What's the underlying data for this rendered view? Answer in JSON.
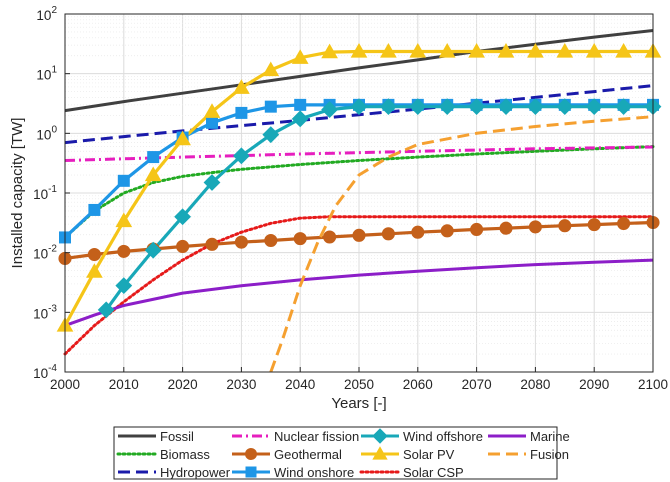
{
  "chart_data": {
    "type": "line",
    "xlabel": "Years [-]",
    "ylabel": "Installed capacity [TW]",
    "xlim": [
      2000,
      2100
    ],
    "ylim": [
      0.0001,
      100
    ],
    "yscale": "log",
    "grid": true,
    "legend_position": "bottom-outside",
    "x_ticks": [
      2000,
      2010,
      2020,
      2030,
      2040,
      2050,
      2060,
      2070,
      2080,
      2090,
      2100
    ],
    "x_tick_labels": [
      "2000",
      "2010",
      "2020",
      "2030",
      "2040",
      "2050",
      "2060",
      "2070",
      "2080",
      "2090",
      "2100"
    ],
    "y_ticks": [
      {
        "value": 0.0001,
        "base": "10",
        "exp": "-4"
      },
      {
        "value": 0.001,
        "base": "10",
        "exp": "-3"
      },
      {
        "value": 0.01,
        "base": "10",
        "exp": "-2"
      },
      {
        "value": 0.1,
        "base": "10",
        "exp": "-1"
      },
      {
        "value": 1,
        "base": "10",
        "exp": "0"
      },
      {
        "value": 10,
        "base": "10",
        "exp": "1"
      },
      {
        "value": 100,
        "base": "10",
        "exp": "2"
      }
    ],
    "series": [
      {
        "name": "Fossil",
        "color": "#404040",
        "dash": "solid",
        "marker": "none",
        "x": [
          2000,
          2010,
          2020,
          2030,
          2040,
          2050,
          2060,
          2070,
          2080,
          2090,
          2100
        ],
        "y": [
          2.4,
          3.4,
          4.7,
          6.5,
          9.0,
          12.5,
          17,
          23.5,
          31,
          41,
          53
        ]
      },
      {
        "name": "Biomass",
        "color": "#22aa22",
        "dash": "dotted",
        "marker": "none",
        "x": [
          2000,
          2005,
          2010,
          2015,
          2020,
          2025,
          2030,
          2040,
          2050,
          2060,
          2070,
          2080,
          2090,
          2100
        ],
        "y": [
          0.018,
          0.05,
          0.1,
          0.15,
          0.19,
          0.22,
          0.25,
          0.3,
          0.35,
          0.4,
          0.45,
          0.5,
          0.55,
          0.6
        ]
      },
      {
        "name": "Hydropower",
        "color": "#1a1aaa",
        "dash": "dashed",
        "marker": "none",
        "x": [
          2000,
          2010,
          2020,
          2030,
          2040,
          2050,
          2060,
          2070,
          2080,
          2090,
          2100
        ],
        "y": [
          0.7,
          0.88,
          1.1,
          1.35,
          1.65,
          2.05,
          2.55,
          3.2,
          4.0,
          5.0,
          6.3
        ]
      },
      {
        "name": "Nuclear fission",
        "color": "#e61ebe",
        "dash": "dashdot",
        "marker": "none",
        "x": [
          2000,
          2020,
          2040,
          2060,
          2080,
          2100
        ],
        "y": [
          0.35,
          0.4,
          0.45,
          0.5,
          0.55,
          0.59
        ]
      },
      {
        "name": "Geothermal",
        "color": "#c4601a",
        "dash": "solid",
        "marker": "circle",
        "x": [
          2000,
          2005,
          2010,
          2015,
          2020,
          2025,
          2030,
          2035,
          2040,
          2045,
          2050,
          2055,
          2060,
          2065,
          2070,
          2075,
          2080,
          2085,
          2090,
          2095,
          2100
        ],
        "y": [
          0.008,
          0.0093,
          0.0105,
          0.0115,
          0.0127,
          0.0138,
          0.015,
          0.016,
          0.0172,
          0.0183,
          0.0195,
          0.0207,
          0.022,
          0.0232,
          0.0245,
          0.0257,
          0.027,
          0.0283,
          0.0295,
          0.0308,
          0.032
        ]
      },
      {
        "name": "Wind onshore",
        "color": "#1e96e6",
        "dash": "solid",
        "marker": "square",
        "x": [
          2000,
          2005,
          2010,
          2015,
          2020,
          2025,
          2030,
          2035,
          2040,
          2045,
          2050,
          2055,
          2060,
          2065,
          2070,
          2075,
          2080,
          2085,
          2090,
          2095,
          2100
        ],
        "y": [
          0.018,
          0.052,
          0.16,
          0.4,
          0.85,
          1.5,
          2.2,
          2.8,
          3.0,
          3.0,
          3.0,
          3.0,
          3.0,
          3.0,
          3.0,
          3.0,
          3.0,
          3.0,
          3.0,
          3.0,
          3.0
        ]
      },
      {
        "name": "Wind offshore",
        "color": "#18a8b8",
        "dash": "solid",
        "marker": "diamond",
        "x": [
          2007,
          2010,
          2015,
          2020,
          2025,
          2030,
          2035,
          2040,
          2045,
          2050,
          2055,
          2060,
          2065,
          2070,
          2075,
          2080,
          2085,
          2090,
          2095,
          2100
        ],
        "y": [
          0.0011,
          0.0028,
          0.011,
          0.04,
          0.15,
          0.42,
          0.95,
          1.75,
          2.5,
          2.8,
          2.8,
          2.8,
          2.8,
          2.8,
          2.8,
          2.8,
          2.8,
          2.8,
          2.8,
          2.8
        ]
      },
      {
        "name": "Solar PV",
        "color": "#f5c518",
        "dash": "solid",
        "marker": "triangle",
        "x": [
          2000,
          2005,
          2010,
          2015,
          2020,
          2025,
          2030,
          2035,
          2040,
          2045,
          2050,
          2055,
          2060,
          2065,
          2070,
          2075,
          2080,
          2085,
          2090,
          2095,
          2100
        ],
        "y": [
          0.0006,
          0.0048,
          0.034,
          0.2,
          0.8,
          2.3,
          5.8,
          11.5,
          18.5,
          23,
          23.5,
          23.5,
          23.5,
          23.5,
          23.5,
          23.5,
          23.5,
          23.5,
          23.5,
          23.5,
          23.5
        ]
      },
      {
        "name": "Solar CSP",
        "color": "#e61a1a",
        "dash": "dotted",
        "marker": "none",
        "x": [
          2000,
          2005,
          2010,
          2015,
          2020,
          2025,
          2030,
          2035,
          2040,
          2045,
          2050,
          2060,
          2070,
          2080,
          2090,
          2100
        ],
        "y": [
          0.0002,
          0.0006,
          0.0015,
          0.0035,
          0.0075,
          0.014,
          0.022,
          0.031,
          0.038,
          0.04,
          0.04,
          0.04,
          0.04,
          0.04,
          0.04,
          0.04
        ]
      },
      {
        "name": "Marine",
        "color": "#8c1ec8",
        "dash": "solid",
        "marker": "none",
        "x": [
          2000,
          2005,
          2010,
          2020,
          2030,
          2040,
          2050,
          2060,
          2070,
          2080,
          2090,
          2100
        ],
        "y": [
          0.0006,
          0.0009,
          0.0013,
          0.0021,
          0.0028,
          0.0035,
          0.0042,
          0.0049,
          0.0056,
          0.0063,
          0.0069,
          0.0075
        ]
      },
      {
        "name": "Fusion",
        "color": "#f5a030",
        "dash": "dashed",
        "marker": "none",
        "x": [
          2035,
          2037,
          2040,
          2043,
          2046,
          2050,
          2055,
          2060,
          2070,
          2080,
          2090,
          2100
        ],
        "y": [
          0.0001,
          0.00035,
          0.0028,
          0.015,
          0.06,
          0.2,
          0.4,
          0.65,
          1.0,
          1.3,
          1.6,
          1.9
        ]
      }
    ]
  }
}
